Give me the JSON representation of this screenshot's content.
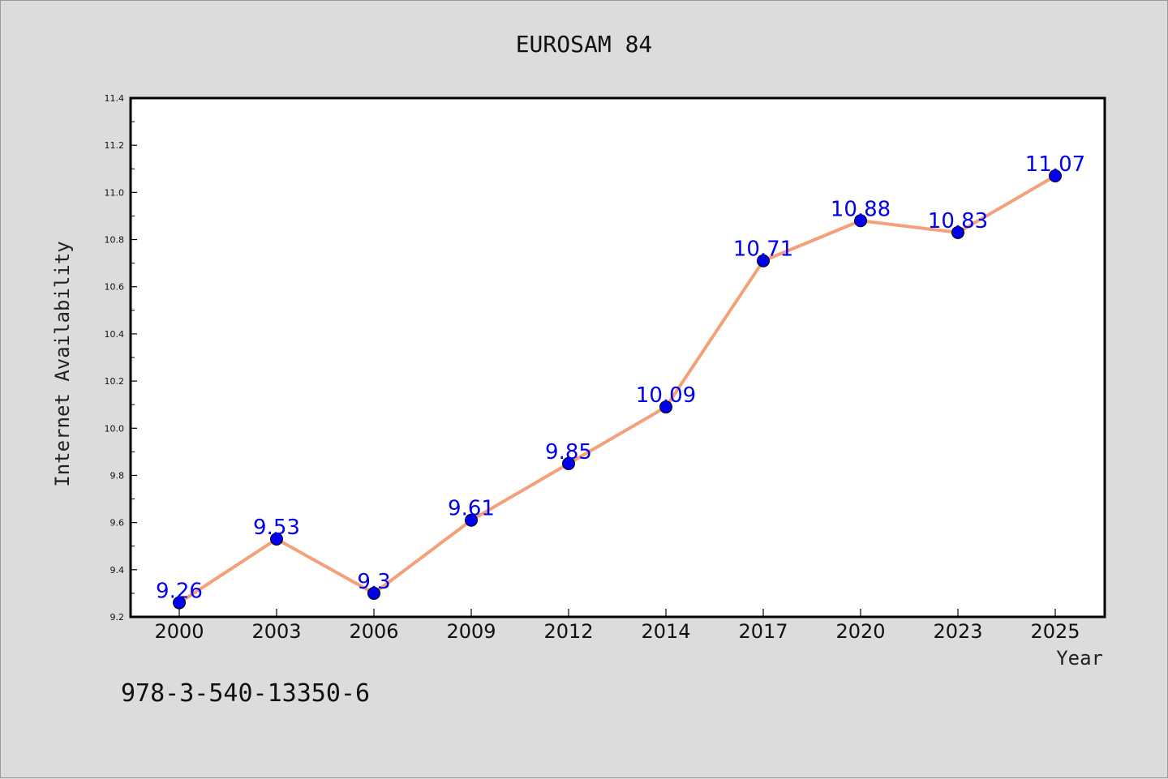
{
  "chart_data": {
    "type": "line",
    "title": "EUROSAM 84",
    "xlabel": "Year",
    "ylabel": "Internet Availability",
    "categories": [
      "2000",
      "2003",
      "2006",
      "2009",
      "2012",
      "2014",
      "2017",
      "2020",
      "2023",
      "2025"
    ],
    "series": [
      {
        "values": [
          9.26,
          9.53,
          9.3,
          9.61,
          9.85,
          10.09,
          10.71,
          10.88,
          10.83,
          11.07
        ]
      }
    ],
    "data_labels": [
      "9.26",
      "9.53",
      "9.3",
      "9.61",
      "9.85",
      "10.09",
      "10.71",
      "10.88",
      "10.83",
      "11.07"
    ],
    "ylim": [
      9.2,
      11.4
    ],
    "yticks": [
      "9.2",
      "9.4",
      "9.6",
      "9.8",
      "10.0",
      "10.2",
      "10.4",
      "10.6",
      "10.8",
      "11.0",
      "11.2",
      "11.4"
    ],
    "grid": false,
    "legend": "none",
    "colors": {
      "line": "#f4a07a",
      "marker": "#0000ee",
      "data_label": "#0000ee",
      "plot_background": "#ffffff",
      "page_background": "#dcdcdc"
    }
  },
  "footnote": "978-3-540-13350-6"
}
